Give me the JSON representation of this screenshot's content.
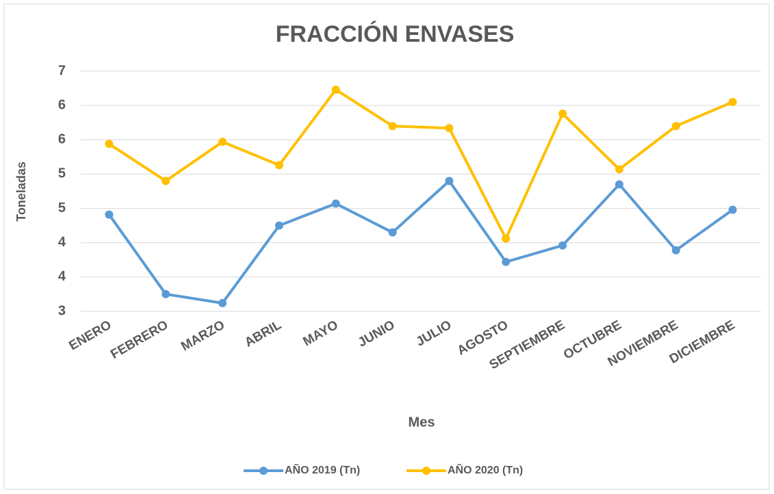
{
  "chart_data": {
    "type": "line",
    "title": "FRACCIÓN ENVASES",
    "x_label": "Mes",
    "y_label": "Toneladas",
    "categories": [
      "ENERO",
      "FEBRERO",
      "MARZO",
      "ABRIL",
      "MAYO",
      "JUNIO",
      "JULIO",
      "AGOSTO",
      "SEPTIEMBRE",
      "OCTUBRE",
      "NOVIEMBRE",
      "DICIEMBRE"
    ],
    "series": [
      {
        "name": "AÑO 2019 (Tn)",
        "color": "#5b9bd5",
        "values": [
          4.41,
          3.25,
          3.12,
          4.25,
          4.57,
          4.15,
          4.9,
          3.72,
          3.96,
          4.85,
          3.89,
          4.48
        ]
      },
      {
        "name": "AÑO 2020 (Tn)",
        "color": "#ffc000",
        "values": [
          5.44,
          4.9,
          5.47,
          5.13,
          6.23,
          5.7,
          5.67,
          4.06,
          5.88,
          5.07,
          5.7,
          6.05
        ]
      }
    ],
    "ylim": [
      3,
      6.5
    ],
    "yticks": [
      3,
      {
        "value": 3.5,
        "label": "4"
      },
      4,
      {
        "value": 4.5,
        "label": "5"
      },
      5,
      {
        "value": 5.5,
        "label": "6"
      },
      6,
      {
        "value": 6.5,
        "label": "7"
      }
    ],
    "grid": true,
    "legend": "bottom"
  }
}
